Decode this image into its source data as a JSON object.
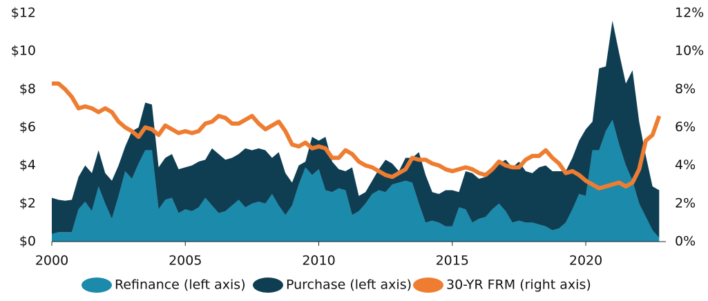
{
  "chart_data": {
    "type": "stacked-area-line",
    "x": [
      2000,
      2000.25,
      2000.5,
      2000.75,
      2001,
      2001.25,
      2001.5,
      2001.75,
      2002,
      2002.25,
      2002.5,
      2002.75,
      2003,
      2003.25,
      2003.5,
      2003.75,
      2004,
      2004.25,
      2004.5,
      2004.75,
      2005,
      2005.25,
      2005.5,
      2005.75,
      2006,
      2006.25,
      2006.5,
      2006.75,
      2007,
      2007.25,
      2007.5,
      2007.75,
      2008,
      2008.25,
      2008.5,
      2008.75,
      2009,
      2009.25,
      2009.5,
      2009.75,
      2010,
      2010.25,
      2010.5,
      2010.75,
      2011,
      2011.25,
      2011.5,
      2011.75,
      2012,
      2012.25,
      2012.5,
      2012.75,
      2013,
      2013.25,
      2013.5,
      2013.75,
      2014,
      2014.25,
      2014.5,
      2014.75,
      2015,
      2015.25,
      2015.5,
      2015.75,
      2016,
      2016.25,
      2016.5,
      2016.75,
      2017,
      2017.25,
      2017.5,
      2017.75,
      2018,
      2018.25,
      2018.5,
      2018.75,
      2019,
      2019.25,
      2019.5,
      2019.75,
      2020,
      2020.25,
      2020.5,
      2020.75,
      2021,
      2021.25,
      2021.5,
      2021.75,
      2022,
      2022.25,
      2022.5,
      2022.75
    ],
    "series": [
      {
        "name": "Refinance (left axis)",
        "color": "#1b8aab",
        "kind": "area",
        "axis": "y",
        "values": [
          0.4,
          0.5,
          0.5,
          0.5,
          1.7,
          2.1,
          1.6,
          2.9,
          2.0,
          1.2,
          2.4,
          3.7,
          3.3,
          4.1,
          4.8,
          4.8,
          1.7,
          2.2,
          2.3,
          1.5,
          1.7,
          1.6,
          1.8,
          2.3,
          1.9,
          1.5,
          1.6,
          1.9,
          2.2,
          1.8,
          2.0,
          2.1,
          2.0,
          2.5,
          1.9,
          1.4,
          1.9,
          3.0,
          3.9,
          3.5,
          3.8,
          2.7,
          2.6,
          2.8,
          2.7,
          1.4,
          1.6,
          2.0,
          2.5,
          2.7,
          2.6,
          3.0,
          3.1,
          3.2,
          3.1,
          2.0,
          1.0,
          1.1,
          1.0,
          0.8,
          0.8,
          1.8,
          1.7,
          1.0,
          1.2,
          1.3,
          1.7,
          2.0,
          1.6,
          1.0,
          1.1,
          1.0,
          1.0,
          0.9,
          0.8,
          0.6,
          0.7,
          1.0,
          1.7,
          2.5,
          2.4,
          4.8,
          4.8,
          5.8,
          6.4,
          5.1,
          4.0,
          3.2,
          2.0,
          1.3,
          0.6,
          0.2
        ]
      },
      {
        "name": "Purchase (left axis)",
        "color": "#0f3e53",
        "kind": "area",
        "axis": "y",
        "values": [
          1.9,
          1.7,
          1.65,
          1.7,
          1.7,
          1.9,
          2.0,
          1.9,
          1.6,
          2.0,
          1.6,
          1.3,
          2.5,
          1.9,
          2.5,
          2.4,
          2.2,
          2.2,
          2.3,
          2.3,
          2.2,
          2.4,
          2.4,
          2.0,
          3.0,
          3.1,
          2.7,
          2.5,
          2.4,
          3.1,
          2.8,
          2.8,
          2.8,
          1.9,
          2.8,
          2.2,
          1.2,
          1.0,
          0.3,
          2.0,
          1.5,
          2.8,
          1.6,
          1.0,
          1.0,
          2.5,
          0.8,
          0.6,
          0.7,
          1.1,
          1.7,
          1.1,
          0.6,
          1.2,
          1.3,
          2.7,
          2.5,
          1.5,
          1.5,
          1.9,
          1.9,
          0.8,
          2.0,
          2.6,
          2.1,
          2.1,
          2.1,
          2.1,
          2.7,
          2.9,
          3.1,
          2.7,
          2.6,
          3.0,
          3.2,
          3.1,
          3.0,
          2.7,
          2.7,
          2.8,
          3.5,
          1.5,
          4.3,
          3.4,
          5.2,
          4.8,
          4.3,
          5.8,
          4.3,
          3.2,
          2.3,
          2.5
        ]
      },
      {
        "name": "30-YR FRM (right axis)",
        "color": "#ee7d31",
        "kind": "line",
        "axis": "y2",
        "values": [
          8.3,
          8.3,
          8.0,
          7.6,
          7.0,
          7.1,
          7.0,
          6.8,
          7.0,
          6.8,
          6.3,
          6.0,
          5.8,
          5.5,
          6.0,
          5.9,
          5.6,
          6.1,
          5.9,
          5.7,
          5.8,
          5.7,
          5.8,
          6.2,
          6.3,
          6.6,
          6.5,
          6.2,
          6.2,
          6.4,
          6.6,
          6.2,
          5.9,
          6.1,
          6.3,
          5.8,
          5.1,
          5.0,
          5.2,
          4.9,
          5.0,
          4.9,
          4.4,
          4.4,
          4.8,
          4.6,
          4.2,
          4.0,
          3.9,
          3.7,
          3.5,
          3.4,
          3.6,
          3.8,
          4.4,
          4.3,
          4.3,
          4.1,
          4.0,
          3.8,
          3.7,
          3.8,
          3.9,
          3.8,
          3.6,
          3.5,
          3.8,
          4.2,
          4.0,
          3.9,
          3.9,
          4.3,
          4.5,
          4.5,
          4.8,
          4.4,
          4.1,
          3.6,
          3.7,
          3.5,
          3.2,
          3.0,
          2.8,
          2.9,
          3.0,
          3.1,
          2.9,
          3.1,
          3.8,
          5.3,
          5.6,
          6.6
        ]
      }
    ],
    "xlim": [
      2000,
      2023
    ],
    "xticks": [
      2000,
      2005,
      2010,
      2015,
      2020
    ],
    "ylim": [
      0,
      12
    ],
    "yticks": [
      {
        "value": 0,
        "label": "$0"
      },
      {
        "value": 2,
        "label": "$2"
      },
      {
        "value": 4,
        "label": "$4"
      },
      {
        "value": 6,
        "label": "$6"
      },
      {
        "value": 8,
        "label": "$8"
      },
      {
        "value": 10,
        "label": "$10"
      },
      {
        "value": 12,
        "label": "$12"
      }
    ],
    "y2lim": [
      0,
      12
    ],
    "y2ticks": [
      {
        "value": 0,
        "label": "0%"
      },
      {
        "value": 2,
        "label": "2%"
      },
      {
        "value": 4,
        "label": "4%"
      },
      {
        "value": 6,
        "label": "6%"
      },
      {
        "value": 8,
        "label": "8%"
      },
      {
        "value": 10,
        "label": "10%"
      },
      {
        "value": 12,
        "label": "12%"
      }
    ],
    "legend": "bottom"
  }
}
